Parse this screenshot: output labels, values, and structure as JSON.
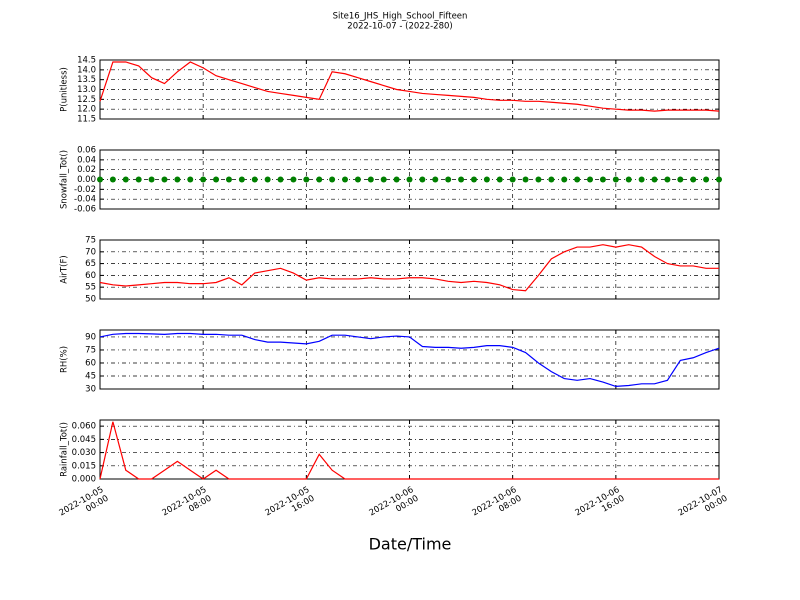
{
  "chart_data": [
    {
      "type": "line",
      "title": "Site16_JHS_High_School_Fifteen",
      "subtitle": "2022-10-07 - (2022-280)",
      "ylabel": "P(unitless)",
      "color": "#ff0000",
      "grid": true,
      "x": [
        "2022-10-05 00:00",
        "2022-10-05 01:00",
        "2022-10-05 02:00",
        "2022-10-05 03:00",
        "2022-10-05 04:00",
        "2022-10-05 05:00",
        "2022-10-05 06:00",
        "2022-10-05 07:00",
        "2022-10-05 08:00",
        "2022-10-05 09:00",
        "2022-10-05 10:00",
        "2022-10-05 11:00",
        "2022-10-05 12:00",
        "2022-10-05 13:00",
        "2022-10-05 14:00",
        "2022-10-05 15:00",
        "2022-10-05 16:00",
        "2022-10-05 17:00",
        "2022-10-05 18:00",
        "2022-10-05 19:00",
        "2022-10-05 20:00",
        "2022-10-05 21:00",
        "2022-10-05 22:00",
        "2022-10-05 23:00",
        "2022-10-06 00:00",
        "2022-10-06 01:00",
        "2022-10-06 02:00",
        "2022-10-06 03:00",
        "2022-10-06 04:00",
        "2022-10-06 05:00",
        "2022-10-06 06:00",
        "2022-10-06 07:00",
        "2022-10-06 08:00",
        "2022-10-06 09:00",
        "2022-10-06 10:00",
        "2022-10-06 11:00",
        "2022-10-06 12:00",
        "2022-10-06 13:00",
        "2022-10-06 14:00",
        "2022-10-06 15:00",
        "2022-10-06 16:00",
        "2022-10-06 17:00",
        "2022-10-06 18:00",
        "2022-10-06 19:00",
        "2022-10-06 20:00",
        "2022-10-06 21:00",
        "2022-10-06 22:00",
        "2022-10-06 23:00",
        "2022-10-07 00:00"
      ],
      "values": [
        12.4,
        14.4,
        14.4,
        14.2,
        13.6,
        13.3,
        13.9,
        14.4,
        14.1,
        13.7,
        13.5,
        13.3,
        13.1,
        12.9,
        12.8,
        12.7,
        12.6,
        12.5,
        13.9,
        13.8,
        13.6,
        13.4,
        13.2,
        13.0,
        12.9,
        12.8,
        12.75,
        12.7,
        12.65,
        12.6,
        12.5,
        12.45,
        12.45,
        12.4,
        12.4,
        12.35,
        12.3,
        12.25,
        12.15,
        12.05,
        12.0,
        11.95,
        11.95,
        11.9,
        11.95,
        11.95,
        11.95,
        11.95,
        11.9
      ],
      "xlim": [
        "2022-10-05 00:00",
        "2022-10-07 00:00"
      ],
      "xticks": [
        "2022-10-05 00:00",
        "2022-10-05 08:00",
        "2022-10-05 16:00",
        "2022-10-06 00:00",
        "2022-10-06 08:00",
        "2022-10-06 16:00",
        "2022-10-07 00:00"
      ],
      "ylim": [
        11.5,
        14.5
      ],
      "yticks": [
        {
          "value": 11.5,
          "label": "11.5"
        },
        {
          "value": 12,
          "label": "12.0"
        },
        {
          "value": 12.5,
          "label": "12.5"
        },
        {
          "value": 13,
          "label": "13.0"
        },
        {
          "value": 13.5,
          "label": "13.5"
        },
        {
          "value": 14,
          "label": "14.0"
        },
        {
          "value": 14.5,
          "label": "14.5"
        }
      ]
    },
    {
      "type": "scatter",
      "ylabel": "Snowfall_Tot()",
      "color": "#008000",
      "grid": true,
      "x": [
        "2022-10-05 00:00",
        "2022-10-05 01:00",
        "2022-10-05 02:00",
        "2022-10-05 03:00",
        "2022-10-05 04:00",
        "2022-10-05 05:00",
        "2022-10-05 06:00",
        "2022-10-05 07:00",
        "2022-10-05 08:00",
        "2022-10-05 09:00",
        "2022-10-05 10:00",
        "2022-10-05 11:00",
        "2022-10-05 12:00",
        "2022-10-05 13:00",
        "2022-10-05 14:00",
        "2022-10-05 15:00",
        "2022-10-05 16:00",
        "2022-10-05 17:00",
        "2022-10-05 18:00",
        "2022-10-05 19:00",
        "2022-10-05 20:00",
        "2022-10-05 21:00",
        "2022-10-05 22:00",
        "2022-10-05 23:00",
        "2022-10-06 00:00",
        "2022-10-06 01:00",
        "2022-10-06 02:00",
        "2022-10-06 03:00",
        "2022-10-06 04:00",
        "2022-10-06 05:00",
        "2022-10-06 06:00",
        "2022-10-06 07:00",
        "2022-10-06 08:00",
        "2022-10-06 09:00",
        "2022-10-06 10:00",
        "2022-10-06 11:00",
        "2022-10-06 12:00",
        "2022-10-06 13:00",
        "2022-10-06 14:00",
        "2022-10-06 15:00",
        "2022-10-06 16:00",
        "2022-10-06 17:00",
        "2022-10-06 18:00",
        "2022-10-06 19:00",
        "2022-10-06 20:00",
        "2022-10-06 21:00",
        "2022-10-06 22:00",
        "2022-10-06 23:00",
        "2022-10-07 00:00"
      ],
      "values": [
        0,
        0,
        0,
        0,
        0,
        0,
        0,
        0,
        0,
        0,
        0,
        0,
        0,
        0,
        0,
        0,
        0,
        0,
        0,
        0,
        0,
        0,
        0,
        0,
        0,
        0,
        0,
        0,
        0,
        0,
        0,
        0,
        0,
        0,
        0,
        0,
        0,
        0,
        0,
        0,
        0,
        0,
        0,
        0,
        0,
        0,
        0,
        0,
        0
      ],
      "xlim": [
        "2022-10-05 00:00",
        "2022-10-07 00:00"
      ],
      "xticks": [
        "2022-10-05 00:00",
        "2022-10-05 08:00",
        "2022-10-05 16:00",
        "2022-10-06 00:00",
        "2022-10-06 08:00",
        "2022-10-06 16:00",
        "2022-10-07 00:00"
      ],
      "ylim": [
        -0.06,
        0.06
      ],
      "yticks": [
        {
          "value": -0.06,
          "label": "-0.06"
        },
        {
          "value": -0.04,
          "label": "-0.04"
        },
        {
          "value": -0.02,
          "label": "-0.02"
        },
        {
          "value": 0,
          "label": "0.00"
        },
        {
          "value": 0.02,
          "label": "0.02"
        },
        {
          "value": 0.04,
          "label": "0.04"
        },
        {
          "value": 0.06,
          "label": "0.06"
        }
      ]
    },
    {
      "type": "line",
      "ylabel": "AirT(F)",
      "color": "#ff0000",
      "grid": true,
      "x": [
        "2022-10-05 00:00",
        "2022-10-05 01:00",
        "2022-10-05 02:00",
        "2022-10-05 03:00",
        "2022-10-05 04:00",
        "2022-10-05 05:00",
        "2022-10-05 06:00",
        "2022-10-05 07:00",
        "2022-10-05 08:00",
        "2022-10-05 09:00",
        "2022-10-05 10:00",
        "2022-10-05 11:00",
        "2022-10-05 12:00",
        "2022-10-05 13:00",
        "2022-10-05 14:00",
        "2022-10-05 15:00",
        "2022-10-05 16:00",
        "2022-10-05 17:00",
        "2022-10-05 18:00",
        "2022-10-05 19:00",
        "2022-10-05 20:00",
        "2022-10-05 21:00",
        "2022-10-05 22:00",
        "2022-10-05 23:00",
        "2022-10-06 00:00",
        "2022-10-06 01:00",
        "2022-10-06 02:00",
        "2022-10-06 03:00",
        "2022-10-06 04:00",
        "2022-10-06 05:00",
        "2022-10-06 06:00",
        "2022-10-06 07:00",
        "2022-10-06 08:00",
        "2022-10-06 09:00",
        "2022-10-06 10:00",
        "2022-10-06 11:00",
        "2022-10-06 12:00",
        "2022-10-06 13:00",
        "2022-10-06 14:00",
        "2022-10-06 15:00",
        "2022-10-06 16:00",
        "2022-10-06 17:00",
        "2022-10-06 18:00",
        "2022-10-06 19:00",
        "2022-10-06 20:00",
        "2022-10-06 21:00",
        "2022-10-06 22:00",
        "2022-10-06 23:00",
        "2022-10-07 00:00"
      ],
      "values": [
        57,
        56,
        55.5,
        56,
        56.5,
        57,
        57,
        56.5,
        56.5,
        57,
        59,
        56,
        61,
        62,
        63,
        61,
        58,
        59,
        58.5,
        58.5,
        58.5,
        59,
        58.5,
        58.5,
        59,
        59,
        58.5,
        57.5,
        57,
        57.5,
        57,
        56,
        54,
        53.5,
        60,
        67,
        70,
        72,
        72,
        73,
        72,
        73,
        72,
        68,
        65,
        64,
        64,
        63,
        63
      ],
      "xlim": [
        "2022-10-05 00:00",
        "2022-10-07 00:00"
      ],
      "xticks": [
        "2022-10-05 00:00",
        "2022-10-05 08:00",
        "2022-10-05 16:00",
        "2022-10-06 00:00",
        "2022-10-06 08:00",
        "2022-10-06 16:00",
        "2022-10-07 00:00"
      ],
      "ylim": [
        50,
        75
      ],
      "yticks": [
        50,
        55,
        60,
        65,
        70,
        75
      ]
    },
    {
      "type": "line",
      "ylabel": "RH(%)",
      "color": "#0000ff",
      "grid": true,
      "x": [
        "2022-10-05 00:00",
        "2022-10-05 01:00",
        "2022-10-05 02:00",
        "2022-10-05 03:00",
        "2022-10-05 04:00",
        "2022-10-05 05:00",
        "2022-10-05 06:00",
        "2022-10-05 07:00",
        "2022-10-05 08:00",
        "2022-10-05 09:00",
        "2022-10-05 10:00",
        "2022-10-05 11:00",
        "2022-10-05 12:00",
        "2022-10-05 13:00",
        "2022-10-05 14:00",
        "2022-10-05 15:00",
        "2022-10-05 16:00",
        "2022-10-05 17:00",
        "2022-10-05 18:00",
        "2022-10-05 19:00",
        "2022-10-05 20:00",
        "2022-10-05 21:00",
        "2022-10-05 22:00",
        "2022-10-05 23:00",
        "2022-10-06 00:00",
        "2022-10-06 01:00",
        "2022-10-06 02:00",
        "2022-10-06 03:00",
        "2022-10-06 04:00",
        "2022-10-06 05:00",
        "2022-10-06 06:00",
        "2022-10-06 07:00",
        "2022-10-06 08:00",
        "2022-10-06 09:00",
        "2022-10-06 10:00",
        "2022-10-06 11:00",
        "2022-10-06 12:00",
        "2022-10-06 13:00",
        "2022-10-06 14:00",
        "2022-10-06 15:00",
        "2022-10-06 16:00",
        "2022-10-06 17:00",
        "2022-10-06 18:00",
        "2022-10-06 19:00",
        "2022-10-06 20:00",
        "2022-10-06 21:00",
        "2022-10-06 22:00",
        "2022-10-06 23:00",
        "2022-10-07 00:00"
      ],
      "values": [
        90,
        93,
        94,
        94,
        93.5,
        93,
        94,
        94,
        93,
        93,
        92,
        92,
        87,
        84,
        84,
        83,
        82,
        85,
        92,
        92,
        90,
        88,
        90,
        91,
        90,
        79,
        78,
        78,
        77,
        78,
        80,
        80,
        78,
        72,
        60,
        50,
        42,
        40,
        42,
        38,
        33,
        34,
        36,
        36,
        40,
        63,
        66,
        72,
        77
      ],
      "xlim": [
        "2022-10-05 00:00",
        "2022-10-07 00:00"
      ],
      "xticks": [
        "2022-10-05 00:00",
        "2022-10-05 08:00",
        "2022-10-05 16:00",
        "2022-10-06 00:00",
        "2022-10-06 08:00",
        "2022-10-06 16:00",
        "2022-10-07 00:00"
      ],
      "ylim": [
        30,
        98
      ],
      "yticks": [
        30,
        45,
        60,
        75,
        90
      ]
    },
    {
      "type": "line",
      "ylabel": "Rainfall_Tot()",
      "xlabel": "Date/Time",
      "color": "#ff0000",
      "grid": true,
      "x": [
        "2022-10-05 00:00",
        "2022-10-05 01:00",
        "2022-10-05 02:00",
        "2022-10-05 03:00",
        "2022-10-05 04:00",
        "2022-10-05 05:00",
        "2022-10-05 06:00",
        "2022-10-05 07:00",
        "2022-10-05 08:00",
        "2022-10-05 09:00",
        "2022-10-05 10:00",
        "2022-10-05 11:00",
        "2022-10-05 12:00",
        "2022-10-05 13:00",
        "2022-10-05 14:00",
        "2022-10-05 15:00",
        "2022-10-05 16:00",
        "2022-10-05 17:00",
        "2022-10-05 18:00",
        "2022-10-05 19:00",
        "2022-10-05 20:00",
        "2022-10-05 21:00",
        "2022-10-05 22:00",
        "2022-10-05 23:00",
        "2022-10-06 00:00",
        "2022-10-06 01:00",
        "2022-10-06 02:00",
        "2022-10-06 03:00",
        "2022-10-06 04:00",
        "2022-10-06 05:00",
        "2022-10-06 06:00",
        "2022-10-06 07:00",
        "2022-10-06 08:00",
        "2022-10-06 09:00",
        "2022-10-06 10:00",
        "2022-10-06 11:00",
        "2022-10-06 12:00",
        "2022-10-06 13:00",
        "2022-10-06 14:00",
        "2022-10-06 15:00",
        "2022-10-06 16:00",
        "2022-10-06 17:00",
        "2022-10-06 18:00",
        "2022-10-06 19:00",
        "2022-10-06 20:00",
        "2022-10-06 21:00",
        "2022-10-06 22:00",
        "2022-10-06 23:00",
        "2022-10-07 00:00"
      ],
      "values": [
        0,
        0.065,
        0.01,
        0,
        0,
        0.01,
        0.02,
        0.01,
        0,
        0.01,
        0,
        0,
        0,
        0,
        0,
        0,
        0,
        0.028,
        0.01,
        0,
        0,
        0,
        0,
        0,
        0,
        0,
        0,
        0,
        0,
        0,
        0,
        0,
        0,
        0,
        0,
        0,
        0,
        0,
        0,
        0,
        0,
        0,
        0,
        0,
        0,
        0,
        0,
        0,
        0
      ],
      "xlim": [
        "2022-10-05 00:00",
        "2022-10-07 00:00"
      ],
      "xticks": [
        {
          "value": "2022-10-05 00:00",
          "label": "2022-10-05\n00:00"
        },
        {
          "value": "2022-10-05 08:00",
          "label": "2022-10-05\n08:00"
        },
        {
          "value": "2022-10-05 16:00",
          "label": "2022-10-05\n16:00"
        },
        {
          "value": "2022-10-06 00:00",
          "label": "2022-10-06\n00:00"
        },
        {
          "value": "2022-10-06 08:00",
          "label": "2022-10-06\n08:00"
        },
        {
          "value": "2022-10-06 16:00",
          "label": "2022-10-06\n16:00"
        },
        {
          "value": "2022-10-07 00:00",
          "label": "2022-10-07\n00:00"
        }
      ],
      "ylim": [
        0,
        0.067
      ],
      "yticks": [
        {
          "value": 0,
          "label": "0.000"
        },
        {
          "value": 0.015,
          "label": "0.015"
        },
        {
          "value": 0.03,
          "label": "0.030"
        },
        {
          "value": 0.045,
          "label": "0.045"
        },
        {
          "value": 0.06,
          "label": "0.060"
        }
      ]
    }
  ]
}
